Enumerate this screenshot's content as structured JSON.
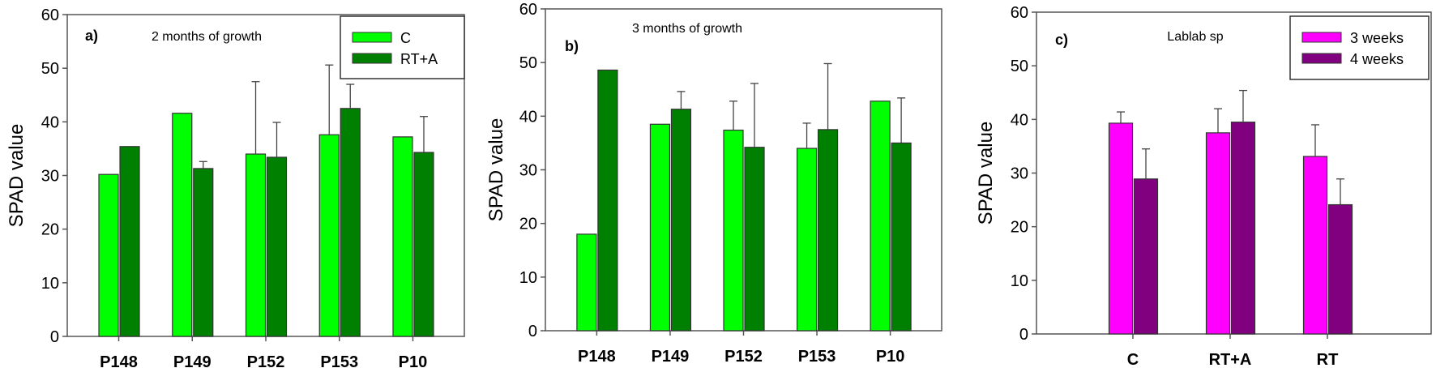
{
  "chart_data": [
    {
      "type": "bar",
      "panel_label": "a)",
      "title": "2 months of growth",
      "xlabel": "",
      "ylabel": "SPAD value",
      "ylim": [
        0,
        60
      ],
      "yticks": [
        "0",
        "10",
        "20",
        "30",
        "40",
        "50",
        "60"
      ],
      "categories": [
        "P148",
        "P149",
        "P152",
        "P153",
        "P10"
      ],
      "legend_position": "top-right",
      "series": [
        {
          "name": "C",
          "color": "#00ff00",
          "values": [
            30.2,
            41.6,
            34.0,
            37.6,
            37.2
          ],
          "error_upper": [
            null,
            null,
            47.5,
            50.6,
            null
          ]
        },
        {
          "name": "RT+A",
          "color": "#008000",
          "values": [
            35.4,
            31.3,
            33.4,
            42.5,
            34.3
          ],
          "error_upper": [
            null,
            32.6,
            39.9,
            47.0,
            41.0
          ]
        }
      ]
    },
    {
      "type": "bar",
      "panel_label": "b)",
      "title": "3 months of growth",
      "xlabel": "",
      "ylabel": "SPAD value",
      "ylim": [
        0,
        60
      ],
      "yticks": [
        "0",
        "10",
        "20",
        "30",
        "40",
        "50",
        "60"
      ],
      "categories": [
        "P148",
        "P149",
        "P152",
        "P153",
        "P10"
      ],
      "legend_position": "none",
      "series": [
        {
          "name": "C",
          "color": "#00ff00",
          "values": [
            18.0,
            38.5,
            37.4,
            34.0,
            42.8
          ],
          "error_upper": [
            null,
            null,
            42.8,
            38.7,
            null
          ]
        },
        {
          "name": "RT+A",
          "color": "#008000",
          "values": [
            48.6,
            41.3,
            34.2,
            37.5,
            35.0
          ],
          "error_upper": [
            null,
            44.6,
            46.1,
            49.8,
            43.4
          ]
        }
      ]
    },
    {
      "type": "bar",
      "panel_label": "c)",
      "title": "Lablab sp",
      "xlabel": "",
      "ylabel": "SPAD value",
      "ylim": [
        0,
        60
      ],
      "yticks": [
        "0",
        "10",
        "20",
        "30",
        "40",
        "50",
        "60"
      ],
      "categories": [
        "C",
        "RT+A",
        "RT"
      ],
      "legend_position": "top-right",
      "series": [
        {
          "name": "3 weeks",
          "color": "#ff00ff",
          "values": [
            39.3,
            37.5,
            33.1
          ],
          "error_upper": [
            41.4,
            42.0,
            39.0
          ]
        },
        {
          "name": "4 weeks",
          "color": "#800080",
          "values": [
            28.9,
            39.5,
            24.1
          ],
          "error_upper": [
            34.5,
            45.4,
            28.9
          ]
        }
      ]
    }
  ]
}
